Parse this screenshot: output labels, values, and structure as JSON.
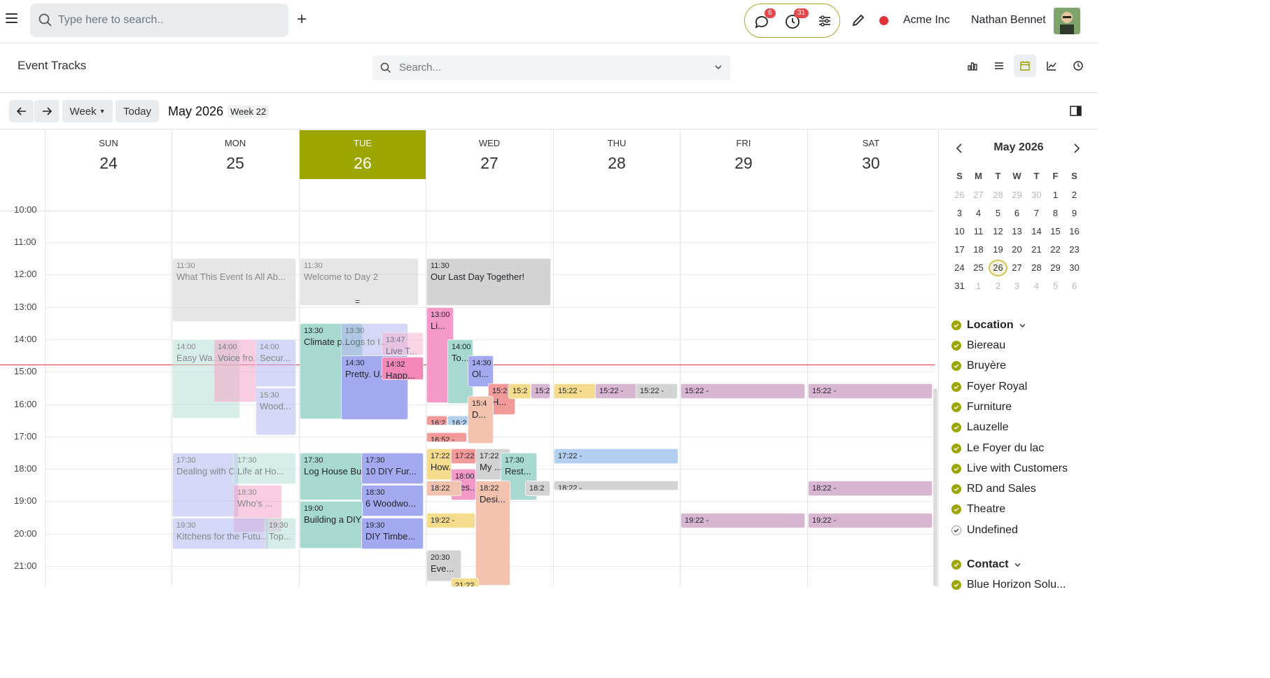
{
  "topbar": {
    "search_placeholder": "Type here to search..",
    "messages_count": "6",
    "activities_count": "31",
    "company": "Acme Inc",
    "user": "Nathan Bennet"
  },
  "control": {
    "title": "Event Tracks",
    "search_placeholder": "Search...",
    "views": [
      "graph-icon",
      "list-icon",
      "calendar-icon",
      "pivot-icon",
      "activity-icon"
    ]
  },
  "toolbar": {
    "scale": "Week",
    "today": "Today",
    "period": "May 2026",
    "week": "Week 22"
  },
  "days": [
    {
      "name": "SUN",
      "num": "24"
    },
    {
      "name": "MON",
      "num": "25"
    },
    {
      "name": "TUE",
      "num": "26"
    },
    {
      "name": "WED",
      "num": "27"
    },
    {
      "name": "THU",
      "num": "28"
    },
    {
      "name": "FRI",
      "num": "29"
    },
    {
      "name": "SAT",
      "num": "30"
    }
  ],
  "hours": [
    "11:00",
    "12:00",
    "13:00",
    "14:00",
    "15:00",
    "16:00",
    "17:00",
    "18:00",
    "19:00",
    "20:00",
    "21:00"
  ],
  "partial_hour": "10:00",
  "events": [
    {
      "day": 1,
      "time": "11:30",
      "name": "What This Event Is All Ab...",
      "color": "#d3d3d3",
      "past": true
    },
    {
      "day": 1,
      "time": "14:00",
      "name": "Easy Wa...",
      "color": "#b7e0d7",
      "past": true
    },
    {
      "day": 1,
      "time": "14:00",
      "name": "Voice fro...",
      "color": "#f3a6c9",
      "past": true
    },
    {
      "day": 1,
      "time": "14:00",
      "name": "Secur...",
      "color": "#b4b8f0",
      "past": true
    },
    {
      "day": 1,
      "time": "15:30",
      "name": "Wood...",
      "color": "#b4b8f0",
      "past": true
    },
    {
      "day": 1,
      "time": "17:30",
      "name": "Dealing with C...",
      "color": "#b4b8f0",
      "past": true
    },
    {
      "day": 1,
      "time": "17:30",
      "name": "Life at Ho...",
      "color": "#b7e0d7",
      "past": true
    },
    {
      "day": 1,
      "time": "18:30",
      "name": "Who's ...",
      "color": "#f3a6c9",
      "past": true
    },
    {
      "day": 1,
      "time": "19:30",
      "name": "Kitchens for the Futu...",
      "color": "#b4b8f0",
      "past": true
    },
    {
      "day": 1,
      "time": "19:30",
      "name": "Top...",
      "color": "#b7e0d7",
      "past": true
    },
    {
      "day": 2,
      "time": "11:30",
      "name": "Welcome to Day 2",
      "color": "#d3d3d3",
      "past": true
    },
    {
      "day": 2,
      "time": "13:30",
      "name": "Climate p...",
      "color": "#a7d9d0",
      "past": false
    },
    {
      "day": 2,
      "time": "13:30",
      "name": "Logs to I...",
      "color": "#b4b8f0",
      "past": true
    },
    {
      "day": 2,
      "time": "13:47",
      "name": "Live T...",
      "color": "#f5b3d0",
      "past": true
    },
    {
      "day": 2,
      "time": "14:30",
      "name": "Pretty. U...",
      "color": "#a3aaf0",
      "past": false
    },
    {
      "day": 2,
      "time": "14:32",
      "name": "Happ...",
      "color": "#f287b8",
      "past": false
    },
    {
      "day": 2,
      "time": "17:30",
      "name": "Log House Bu...",
      "color": "#a7d9d0",
      "past": false
    },
    {
      "day": 2,
      "time": "17:30",
      "name": "10 DIY Fur...",
      "color": "#a3aaf0",
      "past": false
    },
    {
      "day": 2,
      "time": "18:30",
      "name": "6 Woodwo...",
      "color": "#a3aaf0",
      "past": false
    },
    {
      "day": 2,
      "time": "19:00",
      "name": "Building a DIY...",
      "color": "#a7d9d0",
      "past": false
    },
    {
      "day": 2,
      "time": "19:30",
      "name": "DIY Timbe...",
      "color": "#a3aaf0",
      "past": false
    },
    {
      "day": 3,
      "time": "11:30",
      "name": "Our Last Day Together!",
      "color": "#d3d3d3",
      "past": false
    },
    {
      "day": 3,
      "time": "13:00",
      "name": "Li...",
      "color": "#f59ac8",
      "past": false
    },
    {
      "day": 3,
      "time": "14:00",
      "name": "To...",
      "color": "#a7d9d0",
      "past": false
    },
    {
      "day": 3,
      "time": "14:30",
      "name": "Ol...",
      "color": "#a3aaf0",
      "past": false
    },
    {
      "day": 3,
      "time": "15:2",
      "name": "H...",
      "color": "#f29a9a",
      "past": false
    },
    {
      "day": 3,
      "time": "15:2",
      "name": "",
      "color": "#f5dc8c",
      "past": false
    },
    {
      "day": 3,
      "time": "15:2",
      "name": "",
      "color": "#d8b5d0",
      "past": false
    },
    {
      "day": 3,
      "time": "15:4",
      "name": "D...",
      "color": "#f2c2ae",
      "past": false
    },
    {
      "day": 3,
      "time": "16:2",
      "name": "",
      "color": "#f29a9a",
      "past": false
    },
    {
      "day": 3,
      "time": "16:2",
      "name": "",
      "color": "#b3cff0",
      "past": false
    },
    {
      "day": 3,
      "time": "16:52 -",
      "name": "",
      "color": "#f29a9a",
      "past": false
    },
    {
      "day": 3,
      "time": "17:22",
      "name": "How...",
      "color": "#f5dc8c",
      "past": false
    },
    {
      "day": 3,
      "time": "17:22",
      "name": "",
      "color": "#f29a9a",
      "past": false
    },
    {
      "day": 3,
      "time": "17:22",
      "name": "My ...",
      "color": "#d3d3d3",
      "past": false
    },
    {
      "day": 3,
      "time": "17:30",
      "name": "Rest...",
      "color": "#a7d9d0",
      "past": false
    },
    {
      "day": 3,
      "time": "18:00",
      "name": "Les...",
      "color": "#f59ac8",
      "past": false
    },
    {
      "day": 3,
      "time": "18:22",
      "name": "",
      "color": "#f2c2ae",
      "past": false
    },
    {
      "day": 3,
      "time": "18:22",
      "name": "Desi...",
      "color": "#f2c2ae",
      "past": false
    },
    {
      "day": 3,
      "time": "18:2",
      "name": "",
      "color": "#d3d3d3",
      "past": false
    },
    {
      "day": 3,
      "time": "19:22 -",
      "name": "",
      "color": "#f5dc8c",
      "past": false
    },
    {
      "day": 3,
      "time": "20:30",
      "name": "Eve...",
      "color": "#d3d3d3",
      "past": false
    },
    {
      "day": 3,
      "time": "21:22",
      "name": "",
      "color": "#f5dc8c",
      "past": false
    },
    {
      "day": 4,
      "time": "15:22 -",
      "name": "",
      "color": "#f5dc8c",
      "past": false
    },
    {
      "day": 4,
      "time": "15:22 -",
      "name": "",
      "color": "#d8b5d0",
      "past": false
    },
    {
      "day": 4,
      "time": "15:22 -",
      "name": "",
      "color": "#d3d3d3",
      "past": false
    },
    {
      "day": 4,
      "time": "17:22 -",
      "name": "",
      "color": "#b3cff0",
      "past": false
    },
    {
      "day": 4,
      "time": "18:22 -",
      "name": "",
      "color": "#d3d3d3",
      "past": false
    },
    {
      "day": 5,
      "time": "15:22 -",
      "name": "",
      "color": "#d8b5d0",
      "past": false
    },
    {
      "day": 5,
      "time": "19:22 -",
      "name": "",
      "color": "#d8b5d0",
      "past": false
    },
    {
      "day": 6,
      "time": "15:22 -",
      "name": "",
      "color": "#d8b5d0",
      "past": false
    },
    {
      "day": 6,
      "time": "18:22 -",
      "name": "",
      "color": "#d8b5d0",
      "past": false
    },
    {
      "day": 6,
      "time": "19:22 -",
      "name": "",
      "color": "#d8b5d0",
      "past": false
    }
  ],
  "mini": {
    "title": "May 2026",
    "weekdays": [
      "S",
      "M",
      "T",
      "W",
      "T",
      "F",
      "S"
    ],
    "rows": [
      [
        "26",
        "27",
        "28",
        "29",
        "30",
        "1",
        "2"
      ],
      [
        "3",
        "4",
        "5",
        "6",
        "7",
        "8",
        "9"
      ],
      [
        "10",
        "11",
        "12",
        "13",
        "14",
        "15",
        "16"
      ],
      [
        "17",
        "18",
        "19",
        "20",
        "21",
        "22",
        "23"
      ],
      [
        "24",
        "25",
        "26",
        "27",
        "28",
        "29",
        "30"
      ],
      [
        "31",
        "1",
        "2",
        "3",
        "4",
        "5",
        "6"
      ]
    ],
    "today": "26"
  },
  "filters": {
    "location_title": "Location",
    "locations": [
      "Biereau",
      "Bruyère",
      "Foyer Royal",
      "Furniture",
      "Lauzelle",
      "Le Foyer du lac",
      "Live with Customers",
      "RD and Sales",
      "Theatre",
      "Undefined"
    ],
    "contact_title": "Contact",
    "contact_first": "Blue Horizon Solu..."
  },
  "colors": {
    "accent": "#9da600",
    "now_line": "#e33333"
  }
}
